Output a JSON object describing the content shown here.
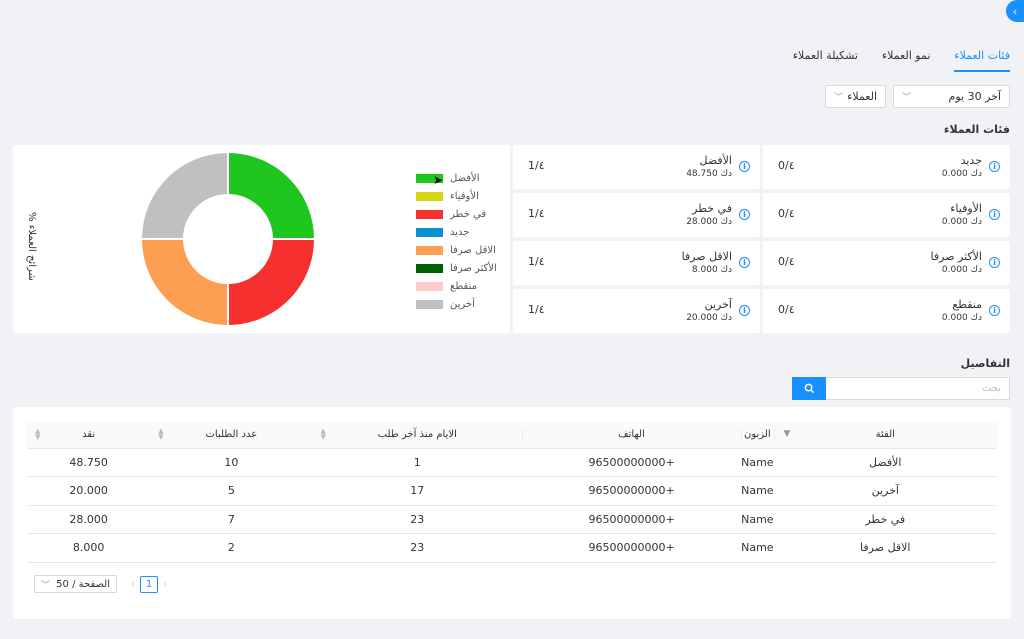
{
  "tabs": [
    {
      "label": "فئات العملاء",
      "active": true
    },
    {
      "label": "نمو العملاء",
      "active": false
    },
    {
      "label": "تشكيلة العملاء",
      "active": false
    }
  ],
  "filters": {
    "period": "آخر 30 يوم",
    "type": "العملاء"
  },
  "categories_title": "فئات العملاء",
  "cards": [
    {
      "name": "جديد",
      "amount": "0.000 دك",
      "frac": "0/٤"
    },
    {
      "name": "الأفضل",
      "amount": "48.750 دك",
      "frac": "1/٤"
    },
    {
      "name": "الأوفياء",
      "amount": "0.000 دك",
      "frac": "0/٤"
    },
    {
      "name": "في خطر",
      "amount": "28.000 دك",
      "frac": "1/٤"
    },
    {
      "name": "الأكثر صرفا",
      "amount": "0.000 دك",
      "frac": "0/٤"
    },
    {
      "name": "الاقل صرفا",
      "amount": "8.000 دك",
      "frac": "1/٤"
    },
    {
      "name": "منقطع",
      "amount": "0.000 دك",
      "frac": "0/٤"
    },
    {
      "name": "آخرين",
      "amount": "20.000 دك",
      "frac": "1/٤"
    }
  ],
  "chart_data": {
    "type": "pie",
    "ylabel": "% شرائح العملاء",
    "legend_position": "right",
    "categories": [
      "الأفضل",
      "الأوفياء",
      "في خطر",
      "جديد",
      "الاقل صرفا",
      "الأكثر صرفا",
      "منقطع",
      "آخرين"
    ],
    "values": [
      25,
      0,
      25,
      0,
      25,
      0,
      0,
      25
    ],
    "colors": [
      "#1ec61e",
      "#d6d613",
      "#f5302e",
      "#0e8fd1",
      "#fd9f52",
      "#005f00",
      "#ffcccc",
      "#c0c0c0"
    ]
  },
  "details_title": "التفاصيل",
  "search": {
    "placeholder": "بحث"
  },
  "table": {
    "headers": [
      "الفئة",
      "الزبون",
      "الهاتف",
      "الايام منذ آخر طلب",
      "عدد الطلبات",
      "نقد"
    ],
    "rows": [
      [
        "الأفضل",
        "Name",
        "+96500000000",
        "1",
        "10",
        "48.750"
      ],
      [
        "آخرين",
        "Name",
        "+96500000000",
        "17",
        "5",
        "20.000"
      ],
      [
        "في خطر",
        "Name",
        "+96500000000",
        "23",
        "7",
        "28.000"
      ],
      [
        "الاقل صرفا",
        "Name",
        "+96500000000",
        "23",
        "2",
        "8.000"
      ]
    ]
  },
  "pagination": {
    "page": "1",
    "page_size": "50 / الصفحة"
  }
}
